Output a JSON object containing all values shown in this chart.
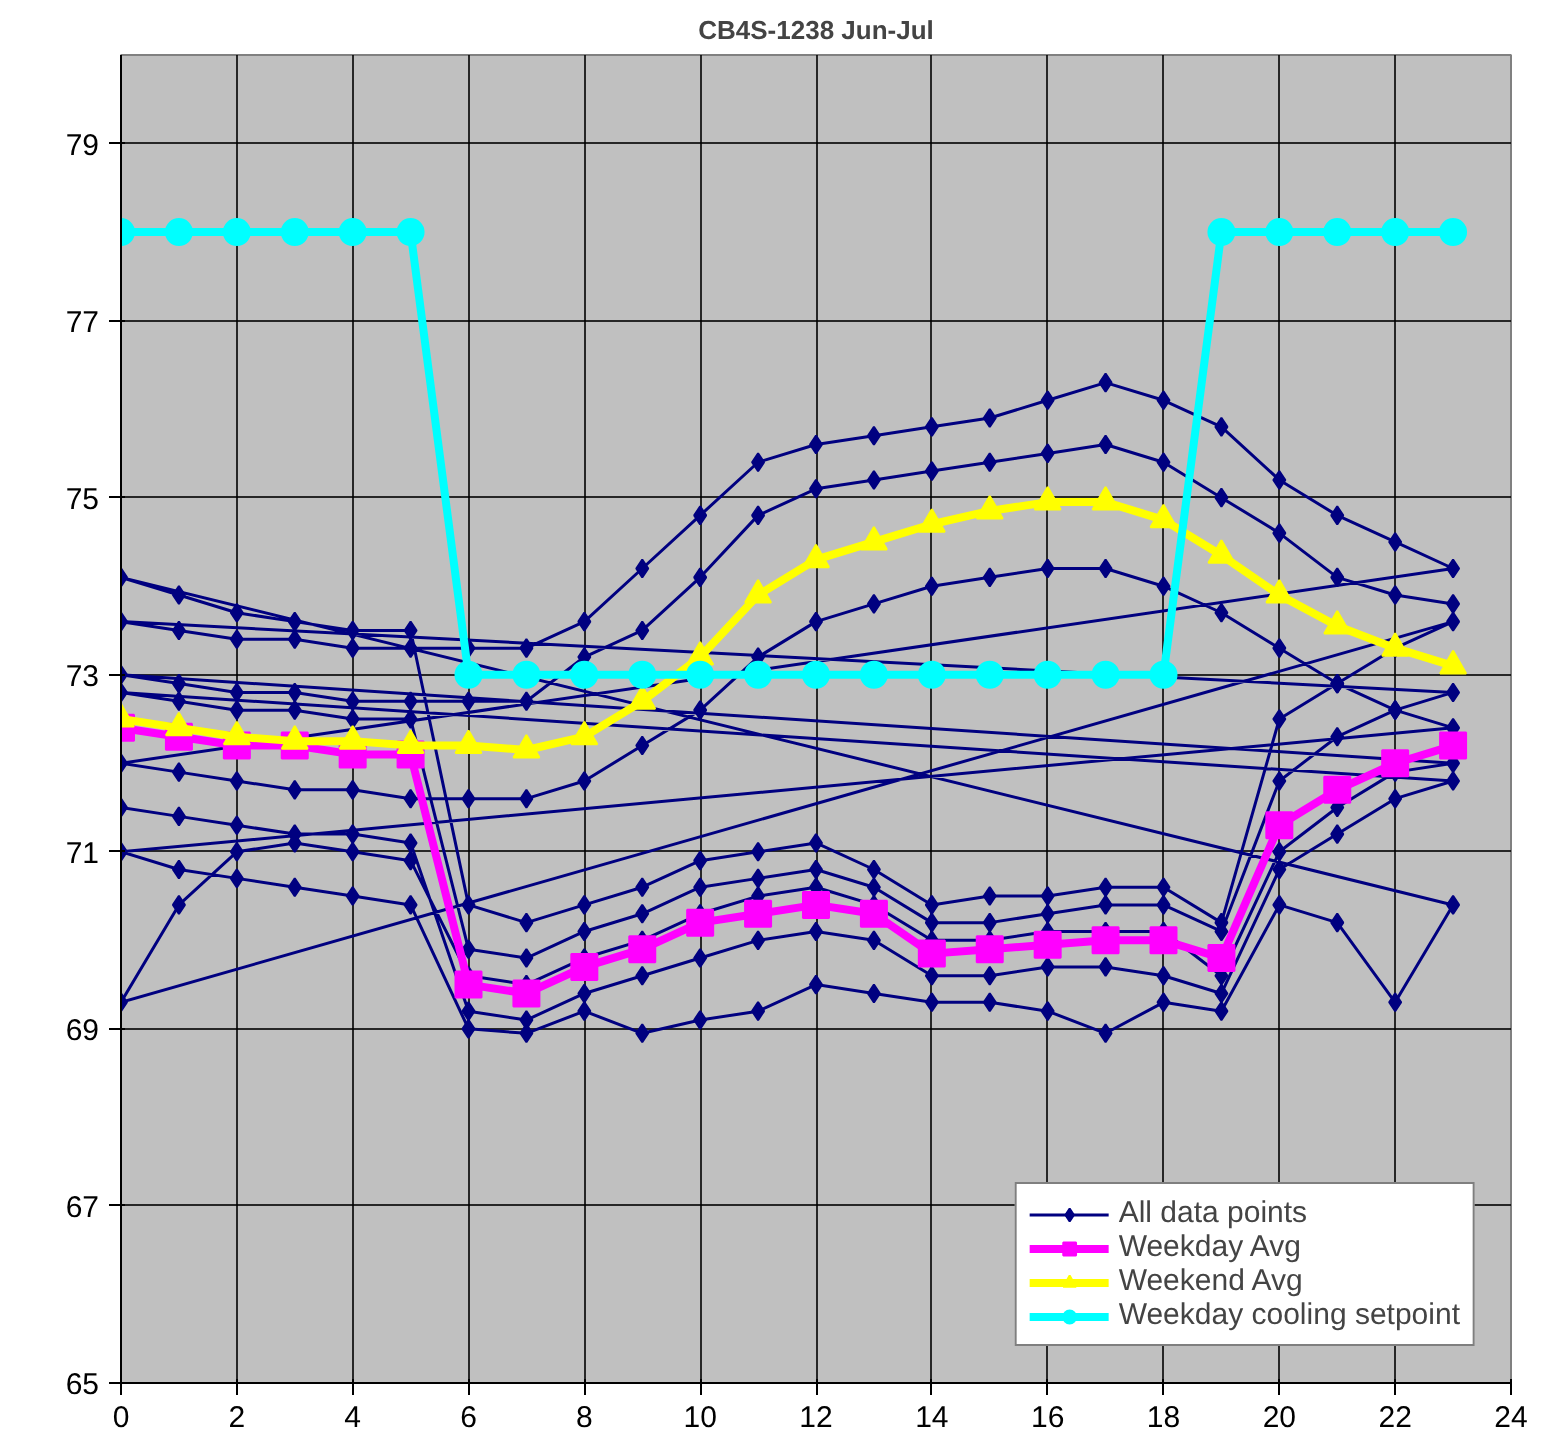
{
  "chart_data": {
    "type": "line",
    "title": "CB4S-1238 Jun-Jul",
    "xlim": [
      0,
      24
    ],
    "ylim": [
      65,
      80
    ],
    "xticks": [
      0,
      2,
      4,
      6,
      8,
      10,
      12,
      14,
      16,
      18,
      20,
      22,
      24
    ],
    "yticks": [
      65,
      67,
      69,
      71,
      73,
      75,
      77,
      79
    ],
    "grid": true,
    "legend": "bottom right",
    "series": [
      {
        "name": "All data points",
        "color": "#000080",
        "marker": "diamond",
        "x": [
          0,
          1,
          2,
          3,
          4,
          5,
          6,
          7,
          8,
          9,
          10,
          11,
          12,
          13,
          14,
          15,
          16,
          17,
          18,
          19,
          20,
          21,
          22,
          23,
          0,
          1,
          2,
          3,
          4,
          5,
          6,
          7,
          8,
          9,
          10,
          11,
          12,
          13,
          14,
          15,
          16,
          17,
          18,
          19,
          20,
          21,
          22,
          23,
          0,
          1,
          2,
          3,
          4,
          5,
          6,
          7,
          8,
          9,
          10,
          11,
          12,
          13,
          14,
          15,
          16,
          17,
          18,
          19,
          20,
          21,
          22,
          23,
          0,
          1,
          2,
          3,
          4,
          5,
          6,
          7,
          8,
          9,
          10,
          11,
          12,
          13,
          14,
          15,
          16,
          17,
          18,
          19,
          20,
          21,
          22,
          23,
          0,
          1,
          2,
          3,
          4,
          5,
          6,
          7,
          8,
          9,
          10,
          11,
          12,
          13,
          14,
          15,
          16,
          17,
          18,
          19,
          20,
          21,
          22,
          23,
          0,
          1,
          2,
          3,
          4,
          5,
          6,
          7,
          8,
          9,
          10,
          11,
          12,
          13,
          14,
          15,
          16,
          17,
          18,
          19,
          20,
          21,
          22,
          23,
          0,
          1,
          2,
          3,
          4,
          5,
          6,
          7,
          8,
          9,
          10,
          11,
          12,
          13,
          14,
          15,
          16,
          17,
          18,
          19,
          20,
          21,
          22,
          23,
          0,
          1,
          2,
          3,
          4,
          5,
          6,
          7,
          8,
          9,
          10,
          11,
          12,
          13,
          14,
          15,
          16,
          17,
          18,
          19,
          20,
          21,
          22,
          23
        ],
        "values": [
          71.5,
          71.4,
          71.3,
          71.2,
          71.2,
          71.1,
          69.2,
          69.1,
          69.4,
          69.6,
          69.8,
          70.0,
          70.1,
          70.0,
          69.6,
          69.6,
          69.7,
          69.7,
          69.6,
          69.4,
          70.8,
          71.2,
          71.6,
          71.8,
          72.8,
          72.7,
          72.6,
          72.6,
          72.5,
          72.5,
          69.9,
          69.8,
          70.1,
          70.3,
          70.6,
          70.7,
          70.8,
          70.6,
          70.2,
          70.2,
          70.3,
          70.4,
          70.4,
          70.1,
          71.8,
          72.3,
          72.6,
          72.8,
          73.6,
          73.5,
          73.4,
          73.4,
          73.3,
          73.3,
          73.3,
          73.3,
          73.6,
          74.2,
          74.8,
          75.4,
          75.6,
          75.7,
          75.8,
          75.9,
          76.1,
          76.3,
          76.1,
          75.8,
          75.2,
          74.8,
          74.5,
          74.2,
          72.0,
          71.9,
          71.8,
          71.7,
          71.7,
          71.6,
          71.6,
          71.6,
          71.8,
          72.2,
          72.6,
          73.2,
          73.6,
          73.8,
          74.0,
          74.1,
          74.2,
          74.2,
          74.0,
          73.7,
          73.3,
          72.9,
          72.6,
          72.4,
          71.0,
          70.8,
          70.7,
          70.6,
          70.5,
          70.4,
          69.0,
          68.95,
          69.2,
          68.95,
          69.1,
          69.2,
          69.5,
          69.4,
          69.3,
          69.3,
          69.2,
          68.95,
          69.3,
          69.2,
          70.4,
          70.2,
          69.3,
          70.4,
          74.1,
          73.9,
          73.7,
          73.6,
          73.5,
          73.5,
          70.4,
          70.2,
          70.4,
          70.6,
          70.9,
          71.0,
          71.1,
          70.8,
          70.4,
          70.5,
          70.5,
          70.6,
          70.6,
          70.2,
          72.5,
          72.9,
          73.3,
          73.6,
          69.3,
          70.4,
          71.0,
          71.1,
          71.0,
          70.9,
          69.6,
          69.5,
          69.8,
          70.0,
          70.3,
          70.5,
          70.6,
          70.4,
          70.0,
          70.0,
          70.1,
          70.1,
          70.1,
          69.6,
          71.0,
          71.5,
          71.9,
          72.0,
          73.0,
          72.9,
          72.8,
          72.8,
          72.7,
          72.7,
          72.7,
          72.7,
          73.2,
          73.5,
          74.1,
          74.8,
          75.1,
          75.2,
          75.3,
          75.4,
          75.5,
          75.6,
          75.4,
          75.0,
          74.6,
          74.1,
          73.9,
          73.8
        ]
      },
      {
        "name": "Weekday Avg",
        "color": "#ff00ff",
        "marker": "square",
        "x": [
          0,
          1,
          2,
          3,
          4,
          5,
          6,
          7,
          8,
          9,
          10,
          11,
          12,
          13,
          14,
          15,
          16,
          17,
          18,
          19,
          20,
          21,
          22,
          23
        ],
        "values": [
          72.4,
          72.3,
          72.2,
          72.2,
          72.1,
          72.1,
          69.5,
          69.4,
          69.7,
          69.9,
          70.2,
          70.3,
          70.4,
          70.3,
          69.85,
          69.9,
          69.95,
          70.0,
          70.0,
          69.8,
          71.3,
          71.7,
          72.0,
          72.2
        ]
      },
      {
        "name": "Weekend Avg",
        "color": "#ffff00",
        "marker": "triangle",
        "x": [
          0,
          1,
          2,
          3,
          4,
          5,
          6,
          7,
          8,
          9,
          10,
          11,
          12,
          13,
          14,
          15,
          16,
          17,
          18,
          19,
          20,
          21,
          22,
          23
        ],
        "values": [
          72.5,
          72.4,
          72.3,
          72.25,
          72.25,
          72.2,
          72.2,
          72.15,
          72.3,
          72.7,
          73.2,
          73.9,
          74.3,
          74.5,
          74.7,
          74.85,
          74.95,
          74.95,
          74.75,
          74.35,
          73.9,
          73.55,
          73.3,
          73.1
        ]
      },
      {
        "name": "Weekday cooling setpoint",
        "color": "#00ffff",
        "marker": "circle",
        "x": [
          0,
          1,
          2,
          3,
          4,
          5,
          6,
          7,
          8,
          9,
          10,
          11,
          12,
          13,
          14,
          15,
          16,
          17,
          18,
          19,
          20,
          21,
          22,
          23
        ],
        "values": [
          78,
          78,
          78,
          78,
          78,
          78,
          73,
          73,
          73,
          73,
          73,
          73,
          73,
          73,
          73,
          73,
          73,
          73,
          73,
          78,
          78,
          78,
          78,
          78
        ]
      }
    ]
  }
}
